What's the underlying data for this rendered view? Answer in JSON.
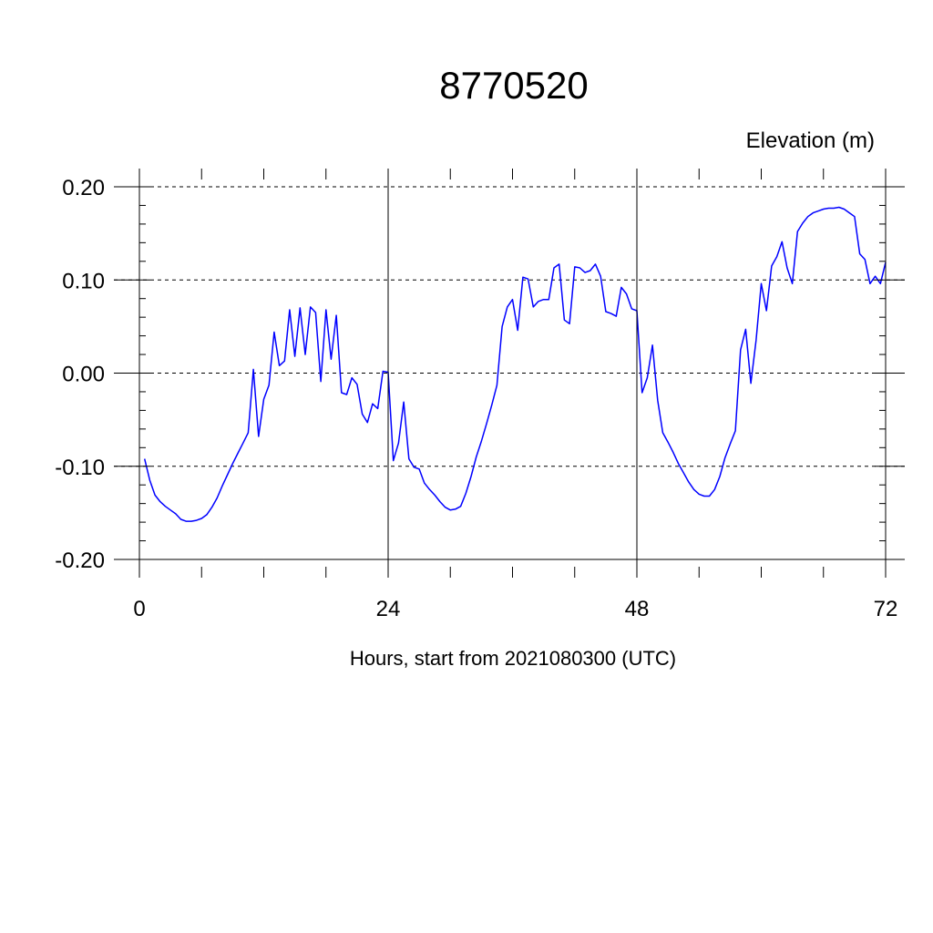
{
  "chart_data": {
    "type": "line",
    "title": "8770520",
    "ylabel": "Elevation (m)",
    "xlabel": "Hours, start from 2021080300 (UTC)",
    "xlim": [
      0,
      72
    ],
    "ylim": [
      -0.2,
      0.2
    ],
    "x_ticks": [
      0,
      24,
      48,
      72
    ],
    "x_tick_labels": [
      "0",
      "24",
      "48",
      "72"
    ],
    "y_ticks": [
      0.2,
      0.1,
      0.0,
      -0.1,
      -0.2
    ],
    "y_tick_labels": [
      "0.20",
      "0.10",
      "0.00",
      "-0.10",
      "-0.20"
    ],
    "grid": true,
    "line_color": "#0000ff",
    "series": [
      {
        "x": [
          0.5,
          1.0,
          1.5,
          2.0,
          2.5,
          3.0,
          3.5,
          4.0,
          4.5,
          5.0,
          5.5,
          6.0,
          6.5,
          7.0,
          7.5,
          8.0,
          8.5,
          9.0,
          9.5,
          10.0,
          10.5,
          11.0,
          11.5,
          12.0,
          12.5,
          13.0,
          13.5,
          14.0,
          14.5,
          15.0,
          15.5,
          16.0,
          16.5,
          17.0,
          17.5,
          18.0,
          18.5,
          19.0,
          19.5,
          20.0,
          20.5,
          21.0,
          21.5,
          22.0,
          22.5,
          23.0,
          23.5,
          24.0,
          24.5,
          25.0,
          25.5,
          26.0,
          26.5,
          27.0,
          27.5,
          28.0,
          28.5,
          29.0,
          29.5,
          30.0,
          30.5,
          31.0,
          31.5,
          32.0,
          32.5,
          33.0,
          33.5,
          34.0,
          34.5,
          35.0,
          35.5,
          36.0,
          36.5,
          37.0,
          37.5,
          38.0,
          38.5,
          39.0,
          39.5,
          40.0,
          40.5,
          41.0,
          41.5,
          42.0,
          42.5,
          43.0,
          43.5,
          44.0,
          44.5,
          45.0,
          45.5,
          46.0,
          46.5,
          47.0,
          47.5,
          48.0,
          48.5,
          49.0,
          49.5,
          50.0,
          50.5,
          51.0,
          51.5,
          52.0,
          52.5,
          53.0,
          53.5,
          54.0,
          54.5,
          55.0,
          55.5,
          56.0,
          56.5,
          57.0,
          57.5,
          58.0,
          58.5,
          59.0,
          59.5,
          60.0,
          60.5,
          61.0,
          61.5,
          62.0,
          62.5,
          63.0,
          63.5,
          64.0,
          64.5,
          65.0,
          65.5,
          66.0,
          66.5,
          67.0,
          67.5,
          68.0,
          68.5,
          69.0,
          69.5,
          70.0,
          70.5,
          71.0,
          71.5,
          72.0
        ],
        "values": [
          -0.092,
          -0.115,
          -0.131,
          -0.138,
          -0.143,
          -0.147,
          -0.151,
          -0.157,
          -0.159,
          -0.159,
          -0.158,
          -0.156,
          -0.152,
          -0.144,
          -0.134,
          -0.121,
          -0.109,
          -0.097,
          -0.086,
          -0.075,
          -0.064,
          0.004,
          -0.068,
          -0.028,
          -0.013,
          0.044,
          0.008,
          0.013,
          0.068,
          0.018,
          0.07,
          0.02,
          0.071,
          0.065,
          -0.009,
          0.068,
          0.015,
          0.062,
          -0.021,
          -0.023,
          -0.005,
          -0.012,
          -0.044,
          -0.053,
          -0.033,
          -0.038,
          0.002,
          0.001,
          -0.094,
          -0.075,
          -0.031,
          -0.092,
          -0.101,
          -0.103,
          -0.118,
          -0.125,
          -0.131,
          -0.138,
          -0.144,
          -0.147,
          -0.146,
          -0.143,
          -0.129,
          -0.111,
          -0.09,
          -0.073,
          -0.054,
          -0.034,
          -0.013,
          0.05,
          0.071,
          0.079,
          0.046,
          0.103,
          0.101,
          0.071,
          0.077,
          0.079,
          0.079,
          0.113,
          0.117,
          0.057,
          0.053,
          0.114,
          0.113,
          0.108,
          0.11,
          0.117,
          0.104,
          0.066,
          0.064,
          0.061,
          0.092,
          0.085,
          0.069,
          0.067,
          -0.021,
          -0.005,
          0.03,
          -0.029,
          -0.064,
          -0.074,
          -0.085,
          -0.097,
          -0.107,
          -0.117,
          -0.125,
          -0.13,
          -0.132,
          -0.132,
          -0.125,
          -0.111,
          -0.091,
          -0.076,
          -0.062,
          0.025,
          0.047,
          -0.011,
          0.035,
          0.096,
          0.067,
          0.115,
          0.125,
          0.141,
          0.113,
          0.096,
          0.152,
          0.161,
          0.168,
          0.172,
          0.174,
          0.176,
          0.177,
          0.177,
          0.178,
          0.176,
          0.172,
          0.168,
          0.128,
          0.122,
          0.096,
          0.104,
          0.096,
          0.119
        ]
      }
    ]
  }
}
